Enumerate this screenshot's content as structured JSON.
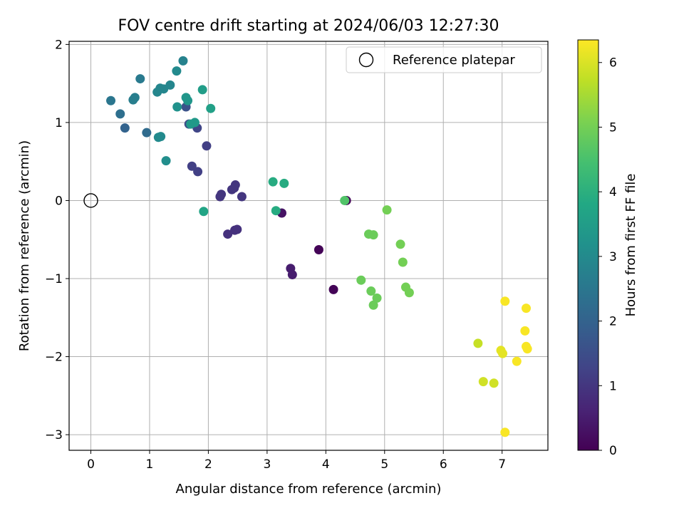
{
  "chart_data": {
    "type": "scatter",
    "title": "FOV centre drift starting at 2024/06/03 12:27:30",
    "xlabel": "Angular distance from reference (arcmin)",
    "ylabel": "Rotation from reference (arcmin)",
    "xlim": [
      -0.37,
      7.78
    ],
    "ylim": [
      -3.2,
      2.04
    ],
    "xticks": [
      0,
      1,
      2,
      3,
      4,
      5,
      6,
      7
    ],
    "yticks": [
      -3,
      -2,
      -1,
      0,
      1,
      2
    ],
    "xtick_labels": [
      "0",
      "1",
      "2",
      "3",
      "4",
      "5",
      "6",
      "7"
    ],
    "ytick_labels": [
      "−3",
      "−2",
      "−1",
      "0",
      "1",
      "2"
    ],
    "grid": true,
    "legend": {
      "placement": "top-right",
      "entries": [
        "Reference platepar"
      ]
    },
    "reference_point": {
      "x": 0,
      "y": 0,
      "marker": "open-circle",
      "stroke": "#000000"
    },
    "colorbar": {
      "label": "Hours from first FF file",
      "min": 0,
      "max": 6.35,
      "ticks": [
        0,
        1,
        2,
        3,
        4,
        5,
        6
      ],
      "tick_labels": [
        "0",
        "1",
        "2",
        "3",
        "4",
        "5",
        "6"
      ],
      "colormap": "viridis"
    },
    "points": [
      {
        "x": 3.88,
        "y": -0.63,
        "c": 0.05
      },
      {
        "x": 4.13,
        "y": -1.14,
        "c": 0.05
      },
      {
        "x": 4.35,
        "y": 0.0,
        "c": 0.1
      },
      {
        "x": 3.25,
        "y": -0.16,
        "c": 0.3
      },
      {
        "x": 3.4,
        "y": -0.87,
        "c": 0.5
      },
      {
        "x": 3.43,
        "y": -0.95,
        "c": 0.5
      },
      {
        "x": 2.33,
        "y": -0.43,
        "c": 0.9
      },
      {
        "x": 2.45,
        "y": -0.38,
        "c": 0.9
      },
      {
        "x": 2.49,
        "y": -0.37,
        "c": 0.9
      },
      {
        "x": 2.2,
        "y": 0.05,
        "c": 1.0
      },
      {
        "x": 2.22,
        "y": 0.08,
        "c": 1.0
      },
      {
        "x": 2.4,
        "y": 0.14,
        "c": 1.0
      },
      {
        "x": 2.44,
        "y": 0.16,
        "c": 1.0
      },
      {
        "x": 2.46,
        "y": 0.2,
        "c": 1.0
      },
      {
        "x": 2.57,
        "y": 0.05,
        "c": 1.0
      },
      {
        "x": 1.72,
        "y": 0.44,
        "c": 1.2
      },
      {
        "x": 1.82,
        "y": 0.37,
        "c": 1.2
      },
      {
        "x": 1.97,
        "y": 0.7,
        "c": 1.2
      },
      {
        "x": 1.81,
        "y": 0.93,
        "c": 1.3
      },
      {
        "x": 1.67,
        "y": 0.98,
        "c": 1.5
      },
      {
        "x": 1.62,
        "y": 1.2,
        "c": 1.6
      },
      {
        "x": 0.58,
        "y": 0.93,
        "c": 2.0
      },
      {
        "x": 0.95,
        "y": 0.87,
        "c": 2.2
      },
      {
        "x": 0.5,
        "y": 1.11,
        "c": 2.3
      },
      {
        "x": 0.34,
        "y": 1.28,
        "c": 2.5
      },
      {
        "x": 0.84,
        "y": 1.56,
        "c": 2.6
      },
      {
        "x": 0.72,
        "y": 1.29,
        "c": 2.7
      },
      {
        "x": 0.75,
        "y": 1.32,
        "c": 2.7
      },
      {
        "x": 1.57,
        "y": 1.79,
        "c": 2.8
      },
      {
        "x": 1.13,
        "y": 1.39,
        "c": 2.9
      },
      {
        "x": 1.18,
        "y": 1.44,
        "c": 2.9
      },
      {
        "x": 1.24,
        "y": 1.43,
        "c": 2.9
      },
      {
        "x": 1.35,
        "y": 1.48,
        "c": 2.9
      },
      {
        "x": 1.46,
        "y": 1.66,
        "c": 3.0
      },
      {
        "x": 1.15,
        "y": 0.81,
        "c": 3.0
      },
      {
        "x": 1.19,
        "y": 0.82,
        "c": 3.0
      },
      {
        "x": 1.28,
        "y": 0.51,
        "c": 3.1
      },
      {
        "x": 1.47,
        "y": 1.2,
        "c": 3.2
      },
      {
        "x": 1.62,
        "y": 1.32,
        "c": 3.3
      },
      {
        "x": 1.65,
        "y": 1.28,
        "c": 3.3
      },
      {
        "x": 1.7,
        "y": 0.98,
        "c": 3.4
      },
      {
        "x": 1.77,
        "y": 1.0,
        "c": 3.4
      },
      {
        "x": 1.9,
        "y": 1.42,
        "c": 3.5
      },
      {
        "x": 2.04,
        "y": 1.18,
        "c": 3.6
      },
      {
        "x": 1.92,
        "y": -0.14,
        "c": 3.7
      },
      {
        "x": 3.1,
        "y": 0.24,
        "c": 3.9
      },
      {
        "x": 3.29,
        "y": 0.22,
        "c": 3.9
      },
      {
        "x": 3.15,
        "y": -0.13,
        "c": 3.9
      },
      {
        "x": 4.32,
        "y": 0.0,
        "c": 4.6
      },
      {
        "x": 4.6,
        "y": -1.02,
        "c": 4.9
      },
      {
        "x": 4.73,
        "y": -0.43,
        "c": 4.9
      },
      {
        "x": 4.81,
        "y": -0.44,
        "c": 4.9
      },
      {
        "x": 4.77,
        "y": -1.16,
        "c": 4.9
      },
      {
        "x": 4.81,
        "y": -1.34,
        "c": 4.9
      },
      {
        "x": 4.87,
        "y": -1.25,
        "c": 4.9
      },
      {
        "x": 5.04,
        "y": -0.12,
        "c": 5.0
      },
      {
        "x": 5.27,
        "y": -0.56,
        "c": 5.0
      },
      {
        "x": 5.31,
        "y": -0.79,
        "c": 5.0
      },
      {
        "x": 5.36,
        "y": -1.11,
        "c": 5.0
      },
      {
        "x": 5.42,
        "y": -1.18,
        "c": 5.0
      },
      {
        "x": 6.59,
        "y": -1.83,
        "c": 5.8
      },
      {
        "x": 6.68,
        "y": -2.32,
        "c": 5.9
      },
      {
        "x": 6.86,
        "y": -2.34,
        "c": 5.9
      },
      {
        "x": 6.98,
        "y": -1.92,
        "c": 6.1
      },
      {
        "x": 7.01,
        "y": -1.96,
        "c": 6.1
      },
      {
        "x": 7.05,
        "y": -1.29,
        "c": 6.3
      },
      {
        "x": 7.05,
        "y": -2.97,
        "c": 6.3
      },
      {
        "x": 7.25,
        "y": -2.06,
        "c": 6.3
      },
      {
        "x": 7.39,
        "y": -1.67,
        "c": 6.3
      },
      {
        "x": 7.41,
        "y": -1.38,
        "c": 6.3
      },
      {
        "x": 7.41,
        "y": -1.87,
        "c": 6.3
      },
      {
        "x": 7.43,
        "y": -1.9,
        "c": 6.3
      }
    ]
  }
}
